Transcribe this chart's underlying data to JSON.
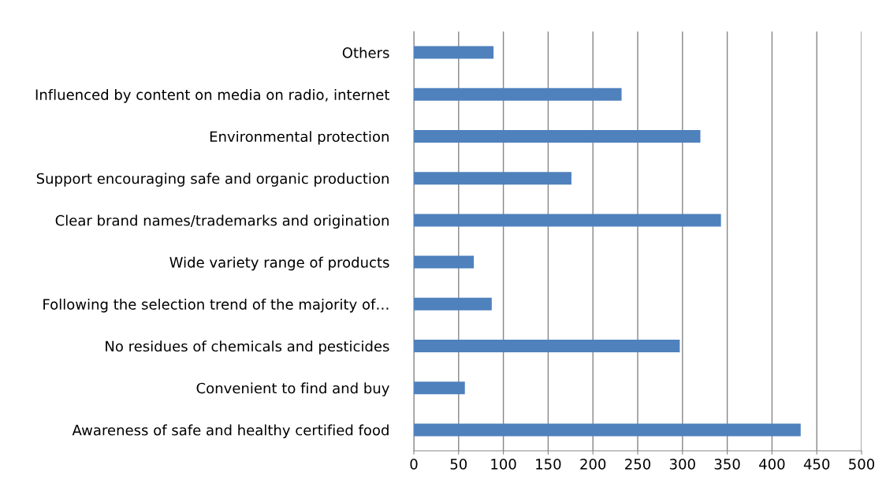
{
  "chart_data": {
    "type": "bar",
    "orientation": "horizontal",
    "categories": [
      "Others",
      "Influenced by content on media on radio, internet",
      "Environmental protection",
      "Support encouraging safe and organic production",
      "Clear brand names/trademarks and origination",
      "Wide variety range of products",
      "Following the selection trend of the majority of…",
      "No residues of chemicals and pesticides",
      "Convenient to find and buy",
      "Awareness of safe and healthy certified food"
    ],
    "values": [
      89,
      232,
      320,
      176,
      343,
      67,
      87,
      297,
      57,
      432
    ],
    "color": "#4f81bd",
    "xlim": [
      0,
      500
    ],
    "xticks": [
      0,
      50,
      100,
      150,
      200,
      250,
      300,
      350,
      400,
      450,
      500
    ],
    "grid": "x",
    "legend": false
  }
}
